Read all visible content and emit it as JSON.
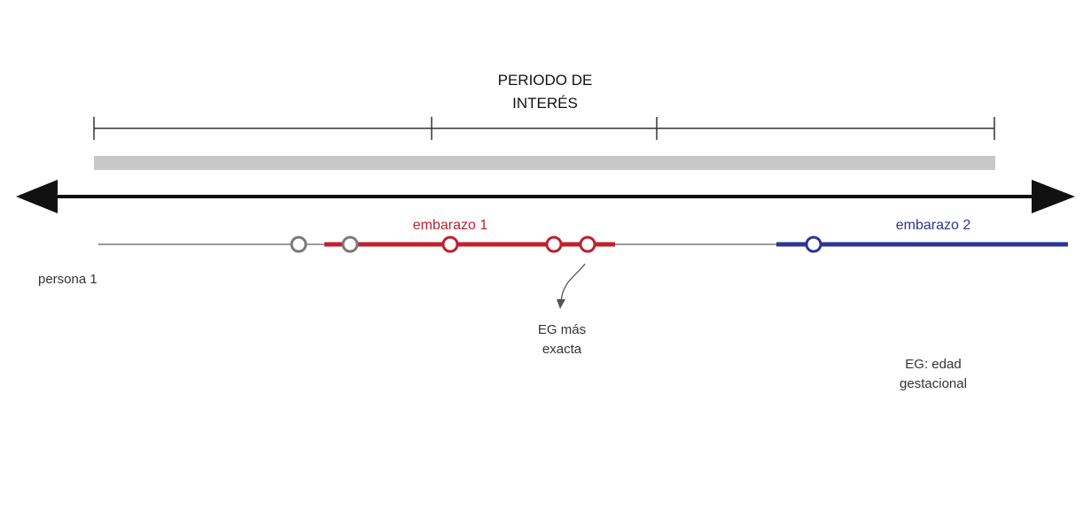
{
  "title": {
    "line1": "PERIODO DE",
    "line2": "INTERÉS"
  },
  "person_label": "persona 1",
  "pregnancies": [
    {
      "label": "embarazo 1",
      "color": "#c0202e"
    },
    {
      "label": "embarazo 2",
      "color": "#2b3595"
    }
  ],
  "annotation": {
    "line1": "EG más",
    "line2": "exacta"
  },
  "legend": {
    "line1": "EG: edad",
    "line2": "gestacional"
  },
  "colors": {
    "axis": "#111111",
    "period_bar": "#c8c8c8",
    "bracket": "#333333",
    "person_line": "#9a9a9a",
    "marker_gray": "#7a7a7a",
    "text": "#333333",
    "arrow": "#555555"
  }
}
